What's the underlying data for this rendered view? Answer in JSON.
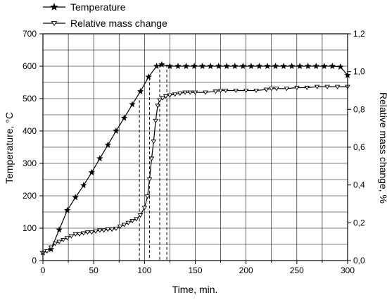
{
  "chart_data": {
    "type": "line",
    "title": "",
    "xlabel": "Time, min.",
    "ylabel_left": "Temperature, °C",
    "ylabel_right": "Relative mass change, %",
    "xlim": [
      0,
      300
    ],
    "ylim_left": [
      0,
      700
    ],
    "ylim_right": [
      0.0,
      1.2
    ],
    "x_ticks": [
      0,
      50,
      100,
      150,
      200,
      250,
      300
    ],
    "x_tick_labels": [
      "0",
      "50",
      "100",
      "150",
      "200",
      "250",
      "300"
    ],
    "y_left_ticks": [
      0,
      100,
      200,
      300,
      400,
      500,
      600,
      700
    ],
    "y_left_tick_labels": [
      "0",
      "100",
      "200",
      "300",
      "400",
      "500",
      "600",
      "700"
    ],
    "y_right_ticks": [
      0.0,
      0.2,
      0.4,
      0.6,
      0.8,
      1.0,
      1.2
    ],
    "y_right_tick_labels": [
      "0,0",
      "0,2",
      "0,4",
      "0,6",
      "0,8",
      "1,0",
      "1,2"
    ],
    "grid": true,
    "legend_position": "top-left",
    "series": [
      {
        "name": "Temperature",
        "axis": "left",
        "marker": "star",
        "color": "#000000",
        "x": [
          0,
          8,
          16,
          24,
          32,
          40,
          48,
          56,
          64,
          72,
          80,
          88,
          96,
          104,
          112,
          117,
          125,
          133,
          141,
          149,
          157,
          165,
          173,
          181,
          189,
          197,
          205,
          213,
          221,
          229,
          237,
          245,
          253,
          261,
          269,
          277,
          285,
          293,
          300
        ],
        "y": [
          25,
          35,
          95,
          155,
          195,
          232,
          272,
          315,
          357,
          400,
          440,
          482,
          522,
          567,
          600,
          605,
          600,
          600,
          600,
          600,
          600,
          600,
          600,
          600,
          600,
          600,
          600,
          600,
          600,
          600,
          600,
          600,
          600,
          600,
          600,
          600,
          600,
          598,
          572
        ]
      },
      {
        "name": "Relative mass change",
        "axis": "right",
        "marker": "triangle-down",
        "color": "#000000",
        "x": [
          0,
          4,
          8,
          12,
          16,
          20,
          24,
          28,
          32,
          36,
          40,
          44,
          48,
          52,
          56,
          60,
          64,
          68,
          72,
          76,
          80,
          84,
          88,
          92,
          96,
          100,
          103,
          105,
          107,
          109,
          111,
          113,
          115,
          118,
          121,
          125,
          130,
          135,
          140,
          145,
          150,
          160,
          170,
          175,
          180,
          190,
          200,
          210,
          220,
          225,
          230,
          240,
          250,
          260,
          270,
          280,
          290,
          300
        ],
        "y": [
          0.04,
          0.05,
          0.07,
          0.09,
          0.1,
          0.11,
          0.12,
          0.13,
          0.14,
          0.14,
          0.145,
          0.15,
          0.15,
          0.155,
          0.16,
          0.16,
          0.165,
          0.165,
          0.17,
          0.18,
          0.19,
          0.2,
          0.21,
          0.22,
          0.24,
          0.28,
          0.34,
          0.43,
          0.54,
          0.63,
          0.74,
          0.82,
          0.85,
          0.86,
          0.87,
          0.875,
          0.88,
          0.885,
          0.89,
          0.89,
          0.89,
          0.89,
          0.895,
          0.9,
          0.9,
          0.9,
          0.9,
          0.9,
          0.905,
          0.91,
          0.91,
          0.91,
          0.915,
          0.915,
          0.92,
          0.92,
          0.92,
          0.92
        ]
      }
    ],
    "vertical_lines": [
      {
        "x": 95,
        "y_left_top": 495
      },
      {
        "x": 105,
        "y_left_top": 565
      },
      {
        "x": 115,
        "y_left_top": 605
      },
      {
        "x": 122,
        "y_left_top": 605
      }
    ]
  }
}
